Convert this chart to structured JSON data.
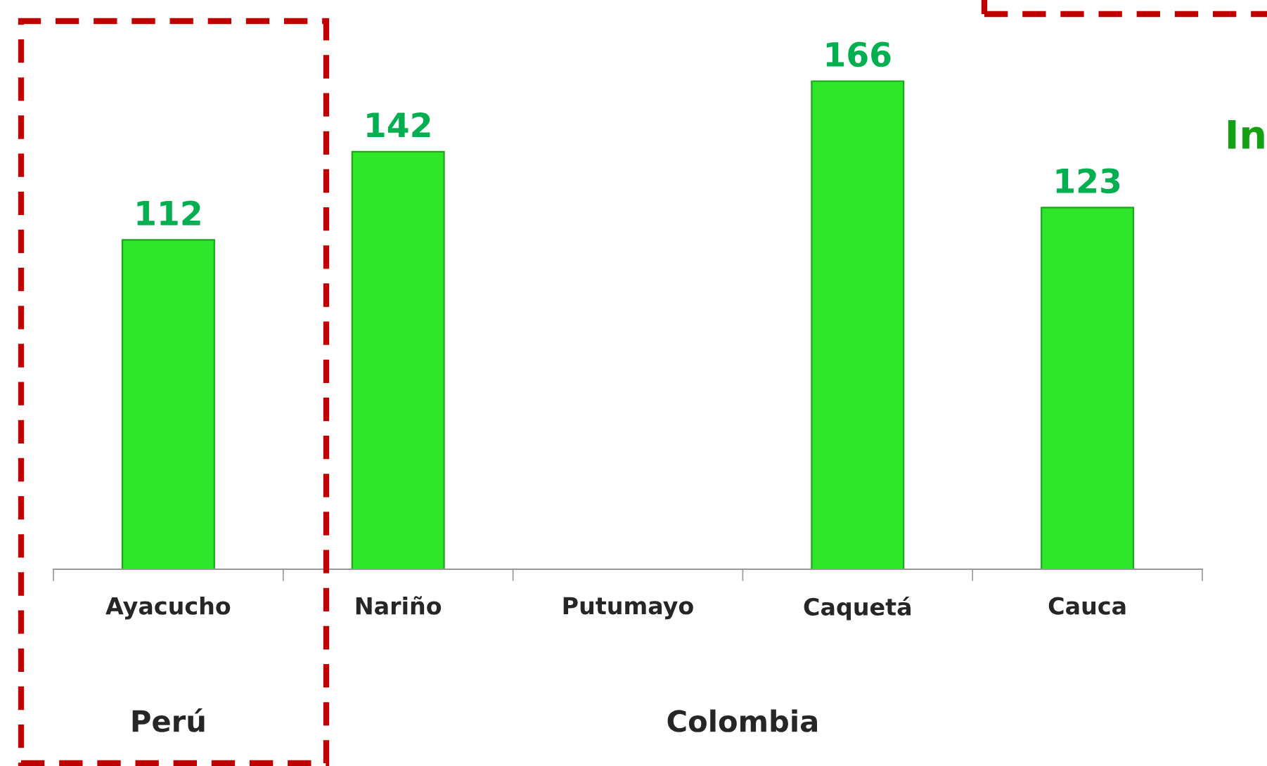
{
  "chart_data": {
    "type": "bar",
    "categories": [
      "Ayacucho",
      "Nariño",
      "Putumayo",
      "Caquetá",
      "Cauca"
    ],
    "series": [
      {
        "color": "#2ee62a",
        "values": [
          112,
          142,
          null,
          166,
          123
        ]
      }
    ],
    "data_labels": true,
    "annotations": [
      "Perú",
      "Colombia",
      "In"
    ]
  }
}
